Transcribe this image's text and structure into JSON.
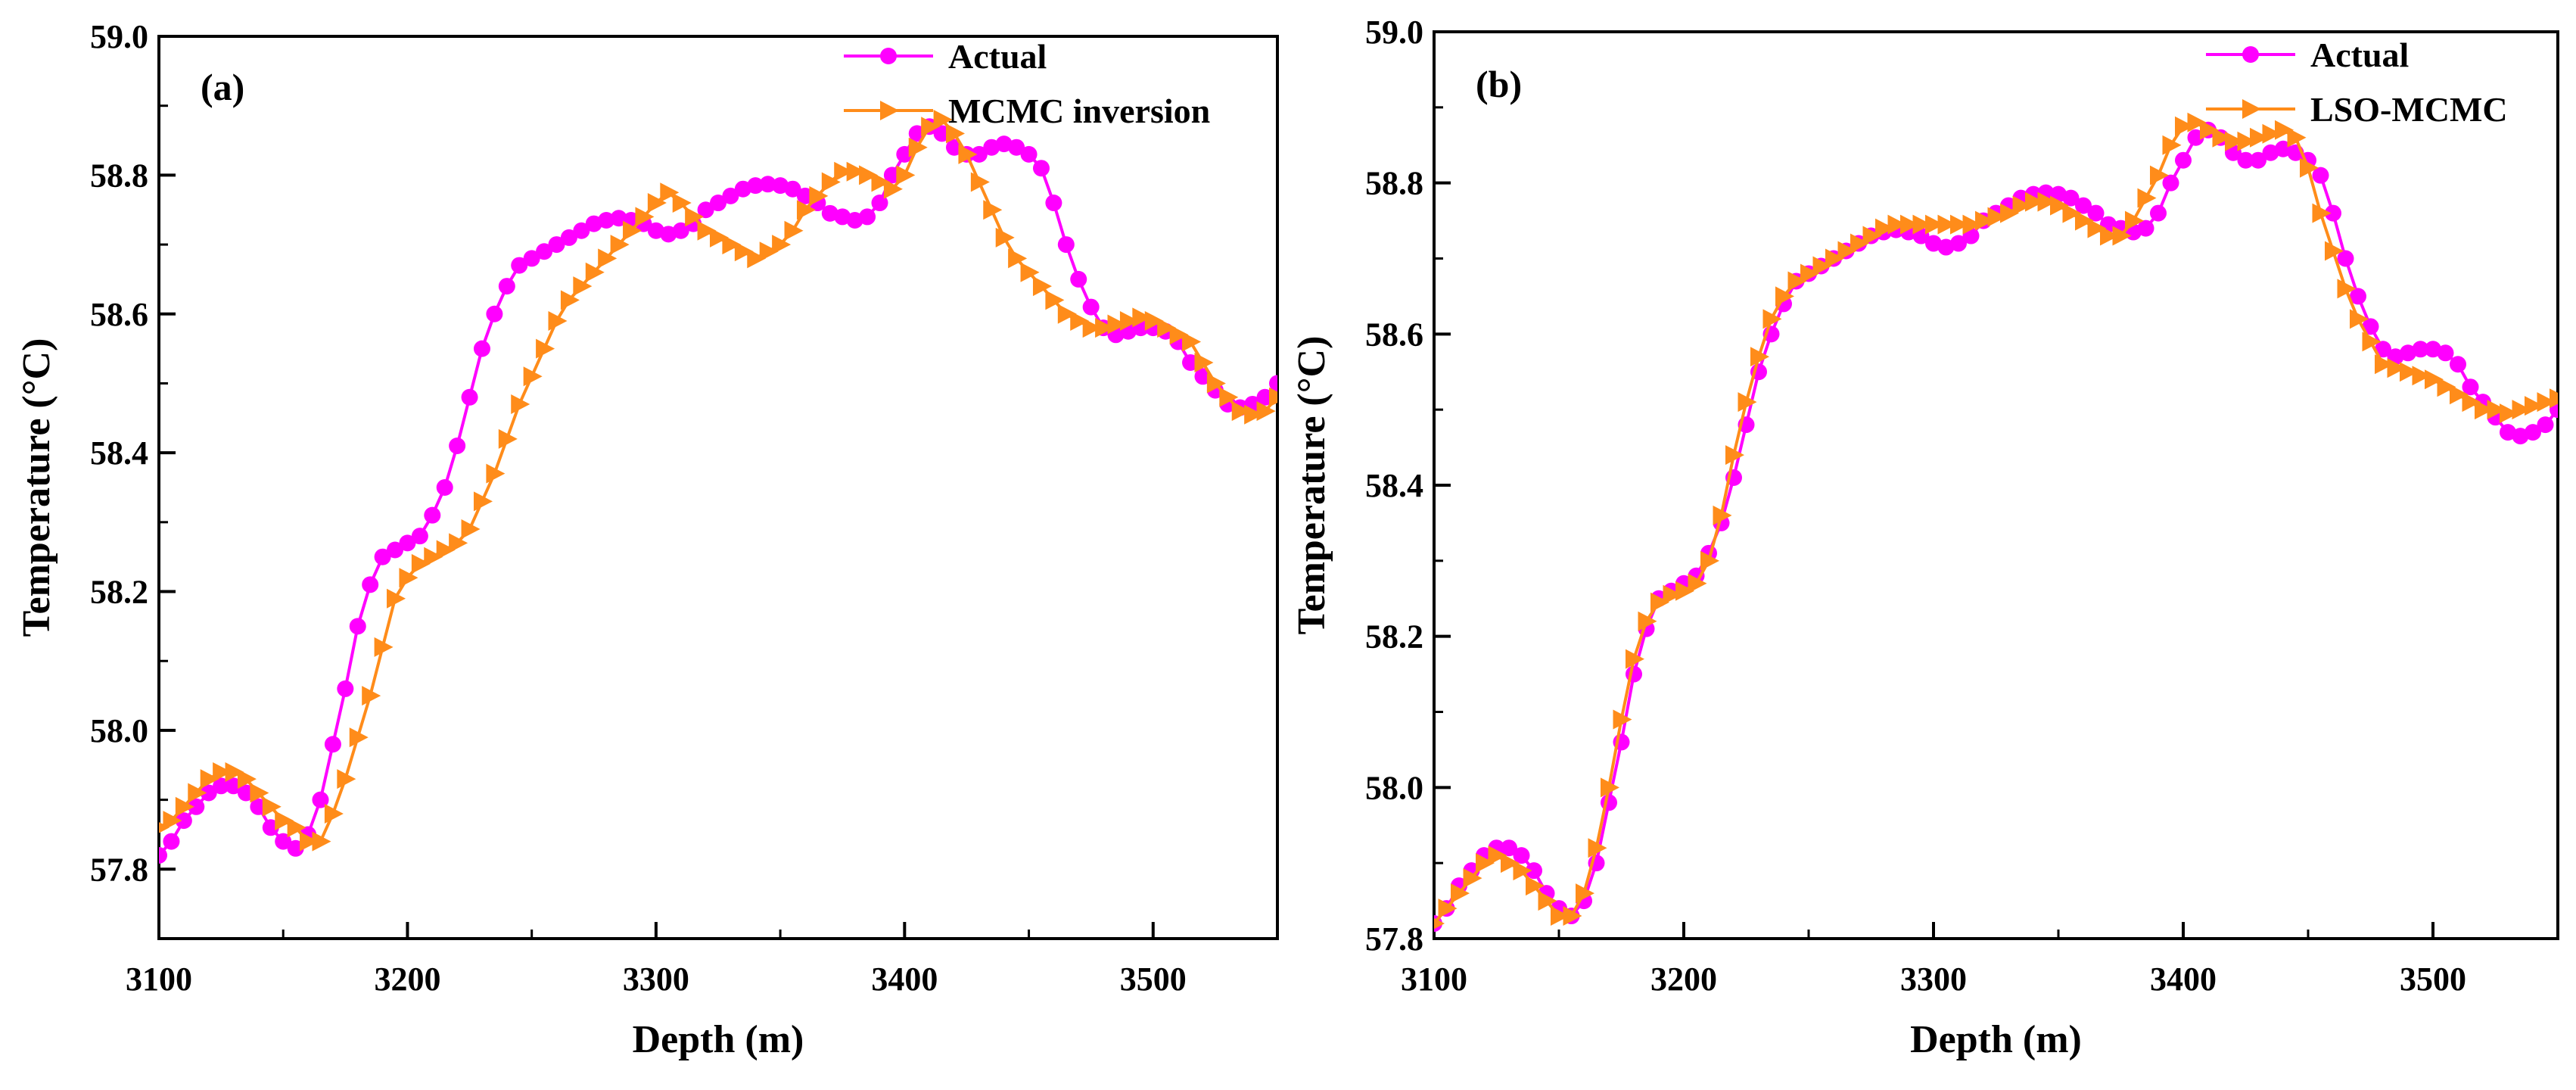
{
  "chart_data": [
    {
      "type": "line",
      "panel_label": "(a)",
      "xlabel": "Depth (m)",
      "ylabel": "Temperature (°C)",
      "xlim": [
        3100,
        3550
      ],
      "ylim": [
        57.7,
        59.0
      ],
      "xticks": [
        3100,
        3200,
        3300,
        3400,
        3500
      ],
      "xtick_labels": [
        "3100",
        "3200",
        "3300",
        "3400",
        "3500"
      ],
      "yticks": [
        57.8,
        58.0,
        58.2,
        58.4,
        58.6,
        58.8,
        59.0
      ],
      "ytick_labels": [
        "57.8",
        "58.0",
        "58.2",
        "58.4",
        "58.6",
        "58.8",
        "59.0"
      ],
      "legend_position": "top-right",
      "series": [
        {
          "name": "Actual",
          "color": "#ff00ff",
          "marker": "circle",
          "x": [
            3100,
            3105,
            3110,
            3115,
            3120,
            3125,
            3130,
            3135,
            3140,
            3145,
            3150,
            3155,
            3160,
            3165,
            3170,
            3175,
            3180,
            3185,
            3190,
            3195,
            3200,
            3205,
            3210,
            3215,
            3220,
            3225,
            3230,
            3235,
            3240,
            3245,
            3250,
            3255,
            3260,
            3265,
            3270,
            3275,
            3280,
            3285,
            3290,
            3295,
            3300,
            3305,
            3310,
            3315,
            3320,
            3325,
            3330,
            3335,
            3340,
            3345,
            3350,
            3355,
            3360,
            3365,
            3370,
            3375,
            3380,
            3385,
            3390,
            3395,
            3400,
            3405,
            3410,
            3415,
            3420,
            3425,
            3430,
            3435,
            3440,
            3445,
            3450,
            3455,
            3460,
            3465,
            3470,
            3475,
            3480,
            3485,
            3490,
            3495,
            3500,
            3505,
            3510,
            3515,
            3520,
            3525,
            3530,
            3535,
            3540,
            3545,
            3550
          ],
          "values": [
            57.82,
            57.84,
            57.87,
            57.89,
            57.91,
            57.92,
            57.92,
            57.91,
            57.89,
            57.86,
            57.84,
            57.83,
            57.85,
            57.9,
            57.98,
            58.06,
            58.15,
            58.21,
            58.25,
            58.26,
            58.27,
            58.28,
            58.31,
            58.35,
            58.41,
            58.48,
            58.55,
            58.6,
            58.64,
            58.67,
            58.68,
            58.69,
            58.7,
            58.71,
            58.72,
            58.73,
            58.735,
            58.738,
            58.735,
            58.73,
            58.72,
            58.715,
            58.72,
            58.73,
            58.75,
            58.76,
            58.77,
            58.78,
            58.785,
            58.787,
            58.785,
            58.78,
            58.77,
            58.76,
            58.745,
            58.74,
            58.735,
            58.74,
            58.76,
            58.8,
            58.83,
            58.86,
            58.87,
            58.86,
            58.84,
            58.83,
            58.83,
            58.84,
            58.845,
            58.84,
            58.83,
            58.81,
            58.76,
            58.7,
            58.65,
            58.61,
            58.58,
            58.57,
            58.575,
            58.58,
            58.58,
            58.575,
            58.56,
            58.53,
            58.51,
            58.49,
            58.47,
            58.465,
            58.47,
            58.48,
            58.5
          ]
        },
        {
          "name": "MCMC inversion",
          "color": "#ff8c1a",
          "marker": "triangle-right",
          "x": [
            3100,
            3105,
            3110,
            3115,
            3120,
            3125,
            3130,
            3135,
            3140,
            3145,
            3150,
            3155,
            3160,
            3165,
            3170,
            3175,
            3180,
            3185,
            3190,
            3195,
            3200,
            3205,
            3210,
            3215,
            3220,
            3225,
            3230,
            3235,
            3240,
            3245,
            3250,
            3255,
            3260,
            3265,
            3270,
            3275,
            3280,
            3285,
            3290,
            3295,
            3300,
            3305,
            3310,
            3315,
            3320,
            3325,
            3330,
            3335,
            3340,
            3345,
            3350,
            3355,
            3360,
            3365,
            3370,
            3375,
            3380,
            3385,
            3390,
            3395,
            3400,
            3405,
            3410,
            3415,
            3420,
            3425,
            3430,
            3435,
            3440,
            3445,
            3450,
            3455,
            3460,
            3465,
            3470,
            3475,
            3480,
            3485,
            3490,
            3495,
            3500,
            3505,
            3510,
            3515,
            3520,
            3525,
            3530,
            3535,
            3540,
            3545,
            3550
          ],
          "values": [
            57.86,
            57.87,
            57.89,
            57.91,
            57.93,
            57.94,
            57.94,
            57.93,
            57.91,
            57.89,
            57.87,
            57.86,
            57.84,
            57.84,
            57.88,
            57.93,
            57.99,
            58.05,
            58.12,
            58.19,
            58.22,
            58.24,
            58.25,
            58.26,
            58.27,
            58.29,
            58.33,
            58.37,
            58.42,
            58.47,
            58.51,
            58.55,
            58.59,
            58.62,
            58.64,
            58.66,
            58.68,
            58.7,
            58.72,
            58.74,
            58.76,
            58.775,
            58.76,
            58.74,
            58.72,
            58.71,
            58.7,
            58.69,
            58.68,
            58.69,
            58.7,
            58.72,
            58.75,
            58.77,
            58.79,
            58.805,
            58.805,
            58.8,
            58.79,
            58.78,
            58.8,
            58.84,
            58.87,
            58.88,
            58.86,
            58.83,
            58.79,
            58.75,
            58.71,
            58.68,
            58.66,
            58.64,
            58.62,
            58.6,
            58.59,
            58.58,
            58.58,
            58.585,
            58.59,
            58.595,
            58.59,
            58.58,
            58.57,
            58.56,
            58.53,
            58.5,
            58.48,
            58.46,
            58.455,
            58.46,
            58.48
          ]
        }
      ]
    },
    {
      "type": "line",
      "panel_label": "(b)",
      "xlabel": "Depth (m)",
      "ylabel": "Temperature (°C)",
      "xlim": [
        3100,
        3550
      ],
      "ylim": [
        57.8,
        59.0
      ],
      "xticks": [
        3100,
        3200,
        3300,
        3400,
        3500
      ],
      "xtick_labels": [
        "3100",
        "3200",
        "3300",
        "3400",
        "3500"
      ],
      "yticks": [
        57.8,
        58.0,
        58.2,
        58.4,
        58.6,
        58.8,
        59.0
      ],
      "ytick_labels": [
        "57.8",
        "58.0",
        "58.2",
        "58.4",
        "58.6",
        "58.8",
        "59.0"
      ],
      "legend_position": "top-right",
      "series": [
        {
          "name": "Actual",
          "color": "#ff00ff",
          "marker": "circle",
          "x": [
            3100,
            3105,
            3110,
            3115,
            3120,
            3125,
            3130,
            3135,
            3140,
            3145,
            3150,
            3155,
            3160,
            3165,
            3170,
            3175,
            3180,
            3185,
            3190,
            3195,
            3200,
            3205,
            3210,
            3215,
            3220,
            3225,
            3230,
            3235,
            3240,
            3245,
            3250,
            3255,
            3260,
            3265,
            3270,
            3275,
            3280,
            3285,
            3290,
            3295,
            3300,
            3305,
            3310,
            3315,
            3320,
            3325,
            3330,
            3335,
            3340,
            3345,
            3350,
            3355,
            3360,
            3365,
            3370,
            3375,
            3380,
            3385,
            3390,
            3395,
            3400,
            3405,
            3410,
            3415,
            3420,
            3425,
            3430,
            3435,
            3440,
            3445,
            3450,
            3455,
            3460,
            3465,
            3470,
            3475,
            3480,
            3485,
            3490,
            3495,
            3500,
            3505,
            3510,
            3515,
            3520,
            3525,
            3530,
            3535,
            3540,
            3545,
            3550
          ],
          "values": [
            57.82,
            57.84,
            57.87,
            57.89,
            57.91,
            57.92,
            57.92,
            57.91,
            57.89,
            57.86,
            57.84,
            57.83,
            57.85,
            57.9,
            57.98,
            58.06,
            58.15,
            58.21,
            58.25,
            58.26,
            58.27,
            58.28,
            58.31,
            58.35,
            58.41,
            58.48,
            58.55,
            58.6,
            58.64,
            58.67,
            58.68,
            58.69,
            58.7,
            58.71,
            58.72,
            58.73,
            58.735,
            58.738,
            58.735,
            58.73,
            58.72,
            58.715,
            58.72,
            58.73,
            58.75,
            58.76,
            58.77,
            58.78,
            58.785,
            58.787,
            58.785,
            58.78,
            58.77,
            58.76,
            58.745,
            58.74,
            58.735,
            58.74,
            58.76,
            58.8,
            58.83,
            58.86,
            58.87,
            58.86,
            58.84,
            58.83,
            58.83,
            58.84,
            58.845,
            58.84,
            58.83,
            58.81,
            58.76,
            58.7,
            58.65,
            58.61,
            58.58,
            58.57,
            58.575,
            58.58,
            58.58,
            58.575,
            58.56,
            58.53,
            58.51,
            58.49,
            58.47,
            58.465,
            58.47,
            58.48,
            58.5
          ]
        },
        {
          "name": "LSO-MCMC",
          "color": "#ff8c1a",
          "marker": "triangle-right",
          "x": [
            3100,
            3105,
            3110,
            3115,
            3120,
            3125,
            3130,
            3135,
            3140,
            3145,
            3150,
            3155,
            3160,
            3165,
            3170,
            3175,
            3180,
            3185,
            3190,
            3195,
            3200,
            3205,
            3210,
            3215,
            3220,
            3225,
            3230,
            3235,
            3240,
            3245,
            3250,
            3255,
            3260,
            3265,
            3270,
            3275,
            3280,
            3285,
            3290,
            3295,
            3300,
            3305,
            3310,
            3315,
            3320,
            3325,
            3330,
            3335,
            3340,
            3345,
            3350,
            3355,
            3360,
            3365,
            3370,
            3375,
            3380,
            3385,
            3390,
            3395,
            3400,
            3405,
            3410,
            3415,
            3420,
            3425,
            3430,
            3435,
            3440,
            3445,
            3450,
            3455,
            3460,
            3465,
            3470,
            3475,
            3480,
            3485,
            3490,
            3495,
            3500,
            3505,
            3510,
            3515,
            3520,
            3525,
            3530,
            3535,
            3540,
            3545,
            3550
          ],
          "values": [
            57.82,
            57.84,
            57.86,
            57.88,
            57.9,
            57.91,
            57.9,
            57.89,
            57.87,
            57.85,
            57.83,
            57.83,
            57.86,
            57.92,
            58.0,
            58.09,
            58.17,
            58.22,
            58.245,
            58.255,
            58.26,
            58.27,
            58.3,
            58.36,
            58.44,
            58.51,
            58.57,
            58.62,
            58.65,
            58.67,
            58.68,
            58.69,
            58.7,
            58.71,
            58.72,
            58.73,
            58.74,
            58.745,
            58.745,
            58.745,
            58.745,
            58.745,
            58.745,
            58.745,
            58.75,
            58.755,
            58.76,
            58.77,
            58.775,
            58.775,
            58.77,
            58.76,
            58.75,
            58.74,
            58.73,
            58.73,
            58.75,
            58.78,
            58.81,
            58.85,
            58.875,
            58.88,
            58.87,
            58.86,
            58.855,
            58.855,
            58.86,
            58.865,
            58.87,
            58.86,
            58.82,
            58.76,
            58.71,
            58.66,
            58.62,
            58.59,
            58.56,
            58.555,
            58.55,
            58.545,
            58.54,
            58.53,
            58.52,
            58.51,
            58.5,
            58.5,
            58.495,
            58.5,
            58.505,
            58.51,
            58.515
          ]
        }
      ]
    }
  ]
}
